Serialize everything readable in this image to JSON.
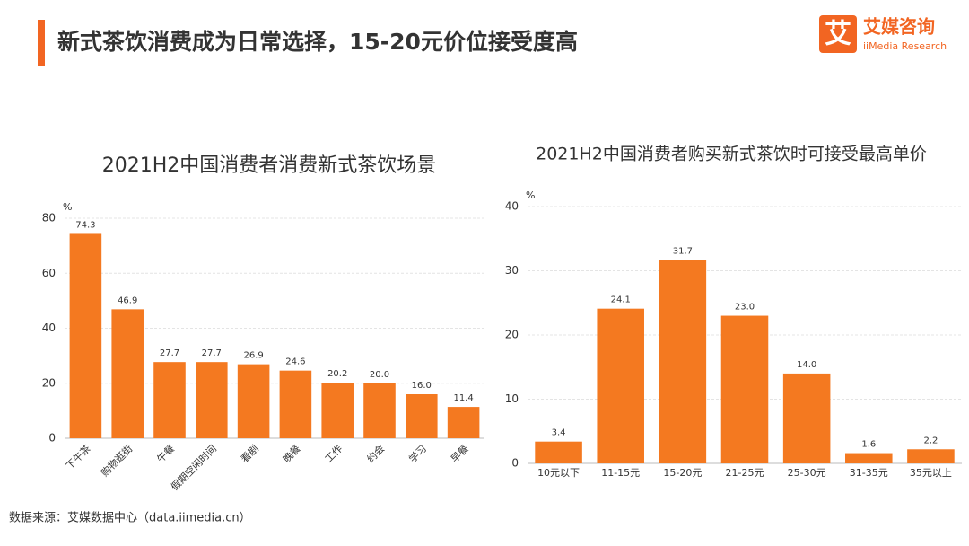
{
  "header": {
    "title": "新式茶饮消费成为日常选择，15-20元价位接受度高"
  },
  "logo": {
    "name": "艾媒咨询",
    "sub": "iiMedia Research",
    "mark": "艾"
  },
  "source": "数据来源：艾媒数据中心（data.iimedia.cn）",
  "chart_data": [
    {
      "type": "bar",
      "title": "2021H2中国消费者消费新式茶饮场景",
      "ylabel": "%",
      "categories": [
        "下午茶",
        "购物逛街",
        "午餐",
        "假期空闲时间",
        "看剧",
        "晚餐",
        "工作",
        "约会",
        "学习",
        "早餐"
      ],
      "values": [
        74.3,
        46.9,
        27.7,
        27.7,
        26.9,
        24.6,
        20.2,
        20.0,
        16.0,
        11.4
      ],
      "value_labels": [
        "74.3",
        "46.9",
        "27.7",
        "27.7",
        "26.9",
        "24.6",
        "20.2",
        "20.0",
        "16.0",
        "11.4"
      ],
      "color": "#f47920",
      "ylim": [
        0,
        80
      ],
      "yticks": [
        0,
        20,
        40,
        60,
        80
      ],
      "grid": true,
      "rotate_labels": true
    },
    {
      "type": "bar",
      "title": "2021H2中国消费者购买新式茶饮时可接受最高单价",
      "ylabel": "%",
      "categories": [
        "10元以下",
        "11-15元",
        "15-20元",
        "21-25元",
        "25-30元",
        "31-35元",
        "35元以上"
      ],
      "values": [
        3.4,
        24.1,
        31.7,
        23.0,
        14.0,
        1.6,
        2.2
      ],
      "value_labels": [
        "3.4",
        "24.1",
        "31.7",
        "23.0",
        "14.0",
        "1.6",
        "2.2"
      ],
      "color": "#f47920",
      "ylim": [
        0,
        40
      ],
      "yticks": [
        0,
        10,
        20,
        30,
        40
      ],
      "grid": true,
      "rotate_labels": false
    }
  ]
}
